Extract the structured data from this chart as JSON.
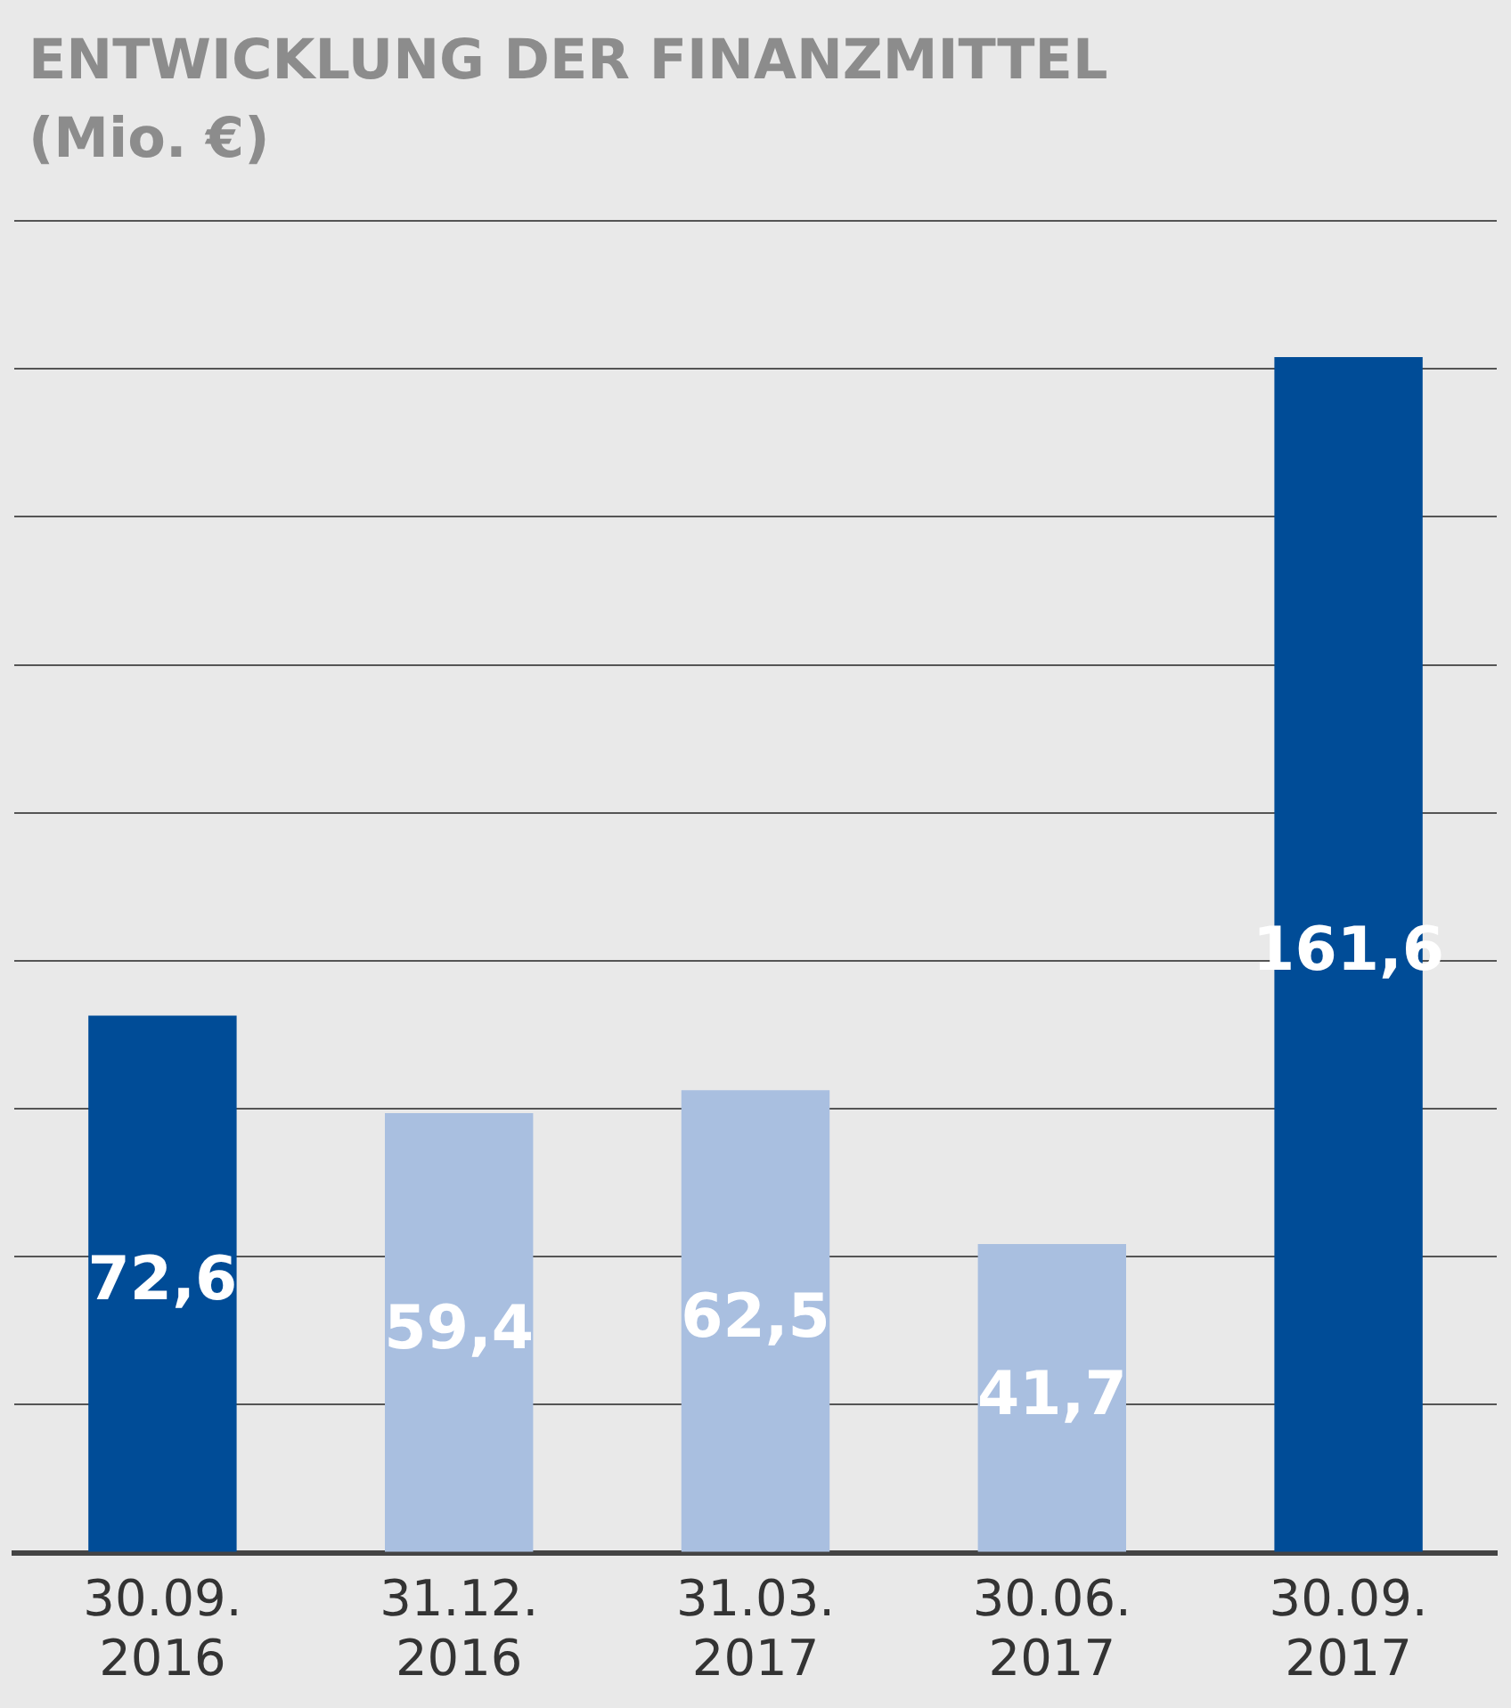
{
  "chart_data": {
    "type": "bar",
    "title": "ENTWICKLUNG DER FINANZMITTEL",
    "subtitle": "(Mio. €)",
    "categories": [
      "30.09.\n2016",
      "31.12.\n2016",
      "31.03.\n2017",
      "30.06.\n2017",
      "30.09.\n2017"
    ],
    "values": [
      72.6,
      59.4,
      62.5,
      41.7,
      161.6
    ],
    "colors": [
      "#004c97",
      "#a9bfe0",
      "#a9bfe0",
      "#a9bfe0",
      "#004c97"
    ],
    "value_labels": [
      "72,6",
      "59,4",
      "62,5",
      "41,7",
      "161,6"
    ],
    "ylim": [
      0,
      180
    ],
    "yticks": [
      {
        "value": 0,
        "label": null
      },
      {
        "value": 20,
        "label": null
      },
      {
        "value": 40,
        "label": null
      },
      {
        "value": 60,
        "label": null
      },
      {
        "value": 80,
        "label": null
      },
      {
        "value": 100,
        "label": null
      },
      {
        "value": 120,
        "label": null
      },
      {
        "value": 140,
        "label": null
      },
      {
        "value": 160,
        "label": null
      },
      {
        "value": 180,
        "label": null
      }
    ],
    "grid": "y",
    "legend": false,
    "tick_labels": "x"
  }
}
